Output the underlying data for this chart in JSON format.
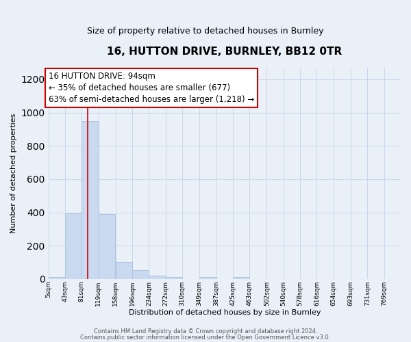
{
  "title_line1": "16, HUTTON DRIVE, BURNLEY, BB12 0TR",
  "title_line2": "Size of property relative to detached houses in Burnley",
  "xlabel": "Distribution of detached houses by size in Burnley",
  "ylabel": "Number of detached properties",
  "bin_labels": [
    "5sqm",
    "43sqm",
    "81sqm",
    "119sqm",
    "158sqm",
    "196sqm",
    "234sqm",
    "272sqm",
    "310sqm",
    "349sqm",
    "387sqm",
    "425sqm",
    "463sqm",
    "502sqm",
    "540sqm",
    "578sqm",
    "616sqm",
    "654sqm",
    "693sqm",
    "731sqm",
    "769sqm"
  ],
  "bin_edges": [
    5,
    43,
    81,
    119,
    158,
    196,
    234,
    272,
    310,
    349,
    387,
    425,
    463,
    502,
    540,
    578,
    616,
    654,
    693,
    731,
    769
  ],
  "bin_width": 38,
  "bar_heights": [
    10,
    393,
    950,
    390,
    103,
    52,
    20,
    10,
    0,
    10,
    0,
    10,
    0,
    0,
    0,
    0,
    0,
    0,
    0,
    0
  ],
  "bar_color": "#c9d9f0",
  "bar_edgecolor": "#afc4de",
  "grid_color": "#c8d8ea",
  "bg_color": "#eaf0f8",
  "vline_x": 94,
  "vline_color": "#cc0000",
  "annotation_text": "16 HUTTON DRIVE: 94sqm\n← 35% of detached houses are smaller (677)\n63% of semi-detached houses are larger (1,218) →",
  "annotation_box_edgecolor": "#cc0000",
  "annotation_box_facecolor": "white",
  "annotation_fontsize": 8.5,
  "ylim": [
    0,
    1270
  ],
  "yticks": [
    0,
    200,
    400,
    600,
    800,
    1000,
    1200
  ],
  "title_fontsize1": 11,
  "title_fontsize2": 9,
  "footer1": "Contains HM Land Registry data © Crown copyright and database right 2024.",
  "footer2": "Contains public sector information licensed under the Open Government Licence v3.0.",
  "footer_fontsize": 6.0
}
